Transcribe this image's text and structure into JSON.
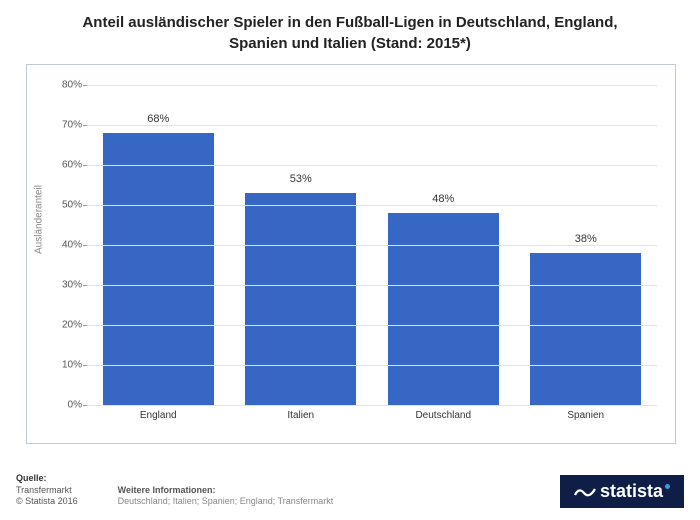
{
  "title_line1": "Anteil ausländischer Spieler in den Fußball-Ligen in Deutschland, England,",
  "title_line2": "Spanien und Italien (Stand: 2015*)",
  "chart": {
    "type": "bar",
    "ylabel": "Ausländeranteil",
    "ylim": [
      0,
      80
    ],
    "ytick_step": 10,
    "ytick_suffix": "%",
    "categories": [
      "England",
      "Italien",
      "Deutschland",
      "Spanien"
    ],
    "values": [
      68,
      53,
      48,
      38
    ],
    "value_labels": [
      "68%",
      "53%",
      "48%",
      "38%"
    ],
    "bar_color": "#3667c4",
    "grid_color": "#dde3ec",
    "border_color": "#bfc8d6",
    "background_color": "#ffffff",
    "label_fontsize": 10
  },
  "footer": {
    "quelle_heading": "Quelle:",
    "quelle_line1": "Transfermarkt",
    "quelle_line2": "© Statista 2016",
    "weitere_heading": "Weitere Informationen:",
    "weitere_text": "Deutschland; Italien; Spanien; England; Transfermarkt"
  },
  "logo": {
    "text": "statista",
    "bg": "#0f1e46",
    "dot_color": "#3a9bdc"
  }
}
